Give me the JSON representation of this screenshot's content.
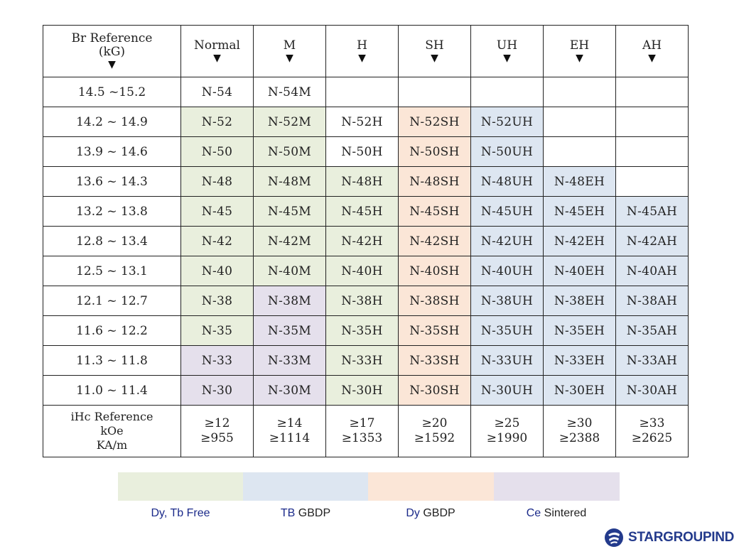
{
  "table": {
    "br_header": [
      "Br Reference",
      "(kG)"
    ],
    "grades": [
      "Normal",
      "M",
      "H",
      "SH",
      "UH",
      "EH",
      "AH"
    ],
    "arrow": "▼",
    "rows": [
      {
        "br": "14.5 ~15.2",
        "cells": [
          "N-54",
          "N-54M",
          "",
          "",
          "",
          "",
          ""
        ],
        "colors": [
          "none",
          "none",
          "none",
          "none",
          "none",
          "none",
          "none"
        ]
      },
      {
        "br": "14.2 ~ 14.9",
        "cells": [
          "N-52",
          "N-52M",
          "N-52H",
          "N-52SH",
          "N-52UH",
          "",
          ""
        ],
        "colors": [
          "green",
          "green",
          "none",
          "orange",
          "blue",
          "none",
          "none"
        ]
      },
      {
        "br": "13.9 ~ 14.6",
        "cells": [
          "N-50",
          "N-50M",
          "N-50H",
          "N-50SH",
          "N-50UH",
          "",
          ""
        ],
        "colors": [
          "green",
          "green",
          "none",
          "orange",
          "blue",
          "none",
          "none"
        ]
      },
      {
        "br": "13.6 ~ 14.3",
        "cells": [
          "N-48",
          "N-48M",
          "N-48H",
          "N-48SH",
          "N-48UH",
          "N-48EH",
          ""
        ],
        "colors": [
          "green",
          "green",
          "green",
          "orange",
          "blue",
          "blue",
          "none"
        ]
      },
      {
        "br": "13.2 ~ 13.8",
        "cells": [
          "N-45",
          "N-45M",
          "N-45H",
          "N-45SH",
          "N-45UH",
          "N-45EH",
          "N-45AH"
        ],
        "colors": [
          "green",
          "green",
          "green",
          "orange",
          "blue",
          "blue",
          "blue"
        ]
      },
      {
        "br": "12.8 ~ 13.4",
        "cells": [
          "N-42",
          "N-42M",
          "N-42H",
          "N-42SH",
          "N-42UH",
          "N-42EH",
          "N-42AH"
        ],
        "colors": [
          "green",
          "green",
          "green",
          "orange",
          "blue",
          "blue",
          "blue"
        ]
      },
      {
        "br": "12.5 ~ 13.1",
        "cells": [
          "N-40",
          "N-40M",
          "N-40H",
          "N-40SH",
          "N-40UH",
          "N-40EH",
          "N-40AH"
        ],
        "colors": [
          "green",
          "green",
          "green",
          "orange",
          "blue",
          "blue",
          "blue"
        ]
      },
      {
        "br": "12.1 ~ 12.7",
        "cells": [
          "N-38",
          "N-38M",
          "N-38H",
          "N-38SH",
          "N-38UH",
          "N-38EH",
          "N-38AH"
        ],
        "colors": [
          "green",
          "purple",
          "green",
          "orange",
          "blue",
          "blue",
          "blue"
        ]
      },
      {
        "br": "11.6 ~ 12.2",
        "cells": [
          "N-35",
          "N-35M",
          "N-35H",
          "N-35SH",
          "N-35UH",
          "N-35EH",
          "N-35AH"
        ],
        "colors": [
          "green",
          "purple",
          "green",
          "orange",
          "blue",
          "blue",
          "blue"
        ]
      },
      {
        "br": "11.3 ~ 11.8",
        "cells": [
          "N-33",
          "N-33M",
          "N-33H",
          "N-33SH",
          "N-33UH",
          "N-33EH",
          "N-33AH"
        ],
        "colors": [
          "purple",
          "purple",
          "green",
          "orange",
          "blue",
          "blue",
          "blue"
        ]
      },
      {
        "br": "11.0 ~ 11.4",
        "cells": [
          "N-30",
          "N-30M",
          "N-30H",
          "N-30SH",
          "N-30UH",
          "N-30EH",
          "N-30AH"
        ],
        "colors": [
          "purple",
          "purple",
          "green",
          "orange",
          "blue",
          "blue",
          "blue"
        ]
      }
    ],
    "ihc_label": [
      "iHc Reference",
      "kOe",
      "KA/m"
    ],
    "ihc_values": [
      [
        "≥12",
        "≥955"
      ],
      [
        "≥14",
        "≥1114"
      ],
      [
        "≥17",
        "≥1353"
      ],
      [
        "≥20",
        "≥1592"
      ],
      [
        "≥25",
        "≥1990"
      ],
      [
        "≥30",
        "≥2388"
      ],
      [
        "≥33",
        "≥2625"
      ]
    ]
  },
  "palette": {
    "green": "#e9efdd",
    "blue": "#dde6f1",
    "orange": "#fbe6d7",
    "purple": "#e5e0ec",
    "none": "#ffffff"
  },
  "legend": [
    {
      "swatch": "green",
      "highlight": "Dy, Tb Free",
      "rest": ""
    },
    {
      "swatch": "blue",
      "highlight": "TB",
      "rest": " GBDP"
    },
    {
      "swatch": "orange",
      "highlight": "Dy",
      "rest": " GBDP"
    },
    {
      "swatch": "purple",
      "highlight": "Ce",
      "rest": " Sintered"
    }
  ],
  "brand": {
    "name": "STARGROUPIND",
    "icon": "stargroup-logo-icon",
    "color": "#233a8c"
  }
}
